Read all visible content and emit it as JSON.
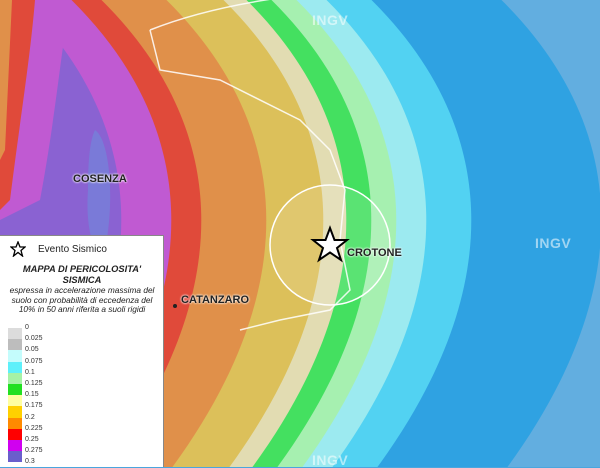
{
  "watermarks": [
    "INGV",
    "INGV",
    "INGV"
  ],
  "cities": {
    "cosenza": "COSENZA",
    "catanzaro": "CATANZARO",
    "crotone": "CROTONE"
  },
  "legend": {
    "event_label": "Evento Sismico",
    "title": "MAPPA DI PERICOLOSITA' SISMICA",
    "subtitle": "espressa in accelerazione massima del suolo con probabilità di eccedenza del 10% in 50 anni riferita a suoli rigidi",
    "ticks": [
      "0",
      "0.025",
      "0.05",
      "0.075",
      "0.1",
      "0.125",
      "0.15",
      "0.175",
      "0.2",
      "0.225",
      "0.25",
      "0.275",
      "0.3"
    ],
    "colors": [
      "#dcdcdc",
      "#bdbdbd",
      "#c4fcfc",
      "#5ef0fa",
      "#a6f2a6",
      "#22e022",
      "#fefea0",
      "#ffd000",
      "#ff8a00",
      "#ff0000",
      "#d000f0",
      "#6a5ecc"
    ]
  },
  "map_colors": {
    "sea_far": "#62aee0",
    "sea": "#2fa2e2",
    "cyan": "#52d2f2",
    "light_cyan": "#9ceaf0",
    "light_green": "#a6f0b0",
    "green": "#44e060",
    "pale": "#e2dcb2",
    "yellow": "#dcc05a",
    "orange": "#e0904a",
    "red": "#e04a3a",
    "magenta": "#c05ad2",
    "purple": "#8a62d2"
  }
}
